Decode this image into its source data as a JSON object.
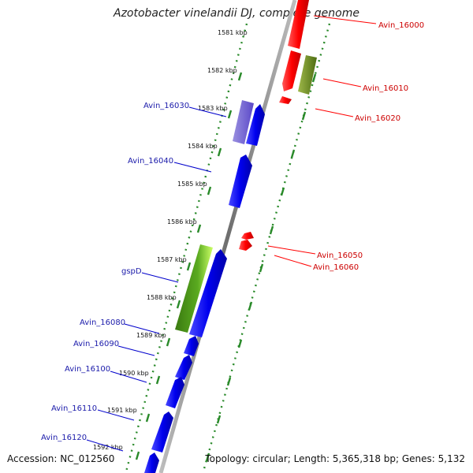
{
  "title": "Azotobacter vinelandii DJ, complete genome",
  "footer": {
    "accession": "Accession: NC_012560",
    "topology": "Topology: circular; Length: 5,365,318 bp; Genes: 5,132"
  },
  "colors": {
    "forward": "#0000ee",
    "reverse": "#ff0000",
    "rna": "#5c8a1a",
    "label_forward": "#1a1aaa",
    "label_reverse": "#cc0000"
  },
  "scale": {
    "unit": "kbp",
    "ticks": [
      "1581 kbp",
      "1582 kbp",
      "1583 kbp",
      "1584 kbp",
      "1585 kbp",
      "1586 kbp",
      "1587 kbp",
      "1588 kbp",
      "1589 kbp",
      "1590 kbp",
      "1591 kbp",
      "1592 kbp"
    ]
  },
  "gene_labels": [
    {
      "text": "Avin_16000",
      "strand": "reverse"
    },
    {
      "text": "Avin_16010",
      "strand": "reverse"
    },
    {
      "text": "Avin_16020",
      "strand": "reverse"
    },
    {
      "text": "Avin_16030",
      "strand": "forward"
    },
    {
      "text": "Avin_16040",
      "strand": "forward"
    },
    {
      "text": "Avin_16050",
      "strand": "reverse"
    },
    {
      "text": "Avin_16060",
      "strand": "reverse"
    },
    {
      "text": "gspD",
      "strand": "forward"
    },
    {
      "text": "Avin_16080",
      "strand": "forward"
    },
    {
      "text": "Avin_16090",
      "strand": "forward"
    },
    {
      "text": "Avin_16100",
      "strand": "forward"
    },
    {
      "text": "Avin_16110",
      "strand": "forward"
    },
    {
      "text": "Avin_16120",
      "strand": "forward"
    }
  ]
}
